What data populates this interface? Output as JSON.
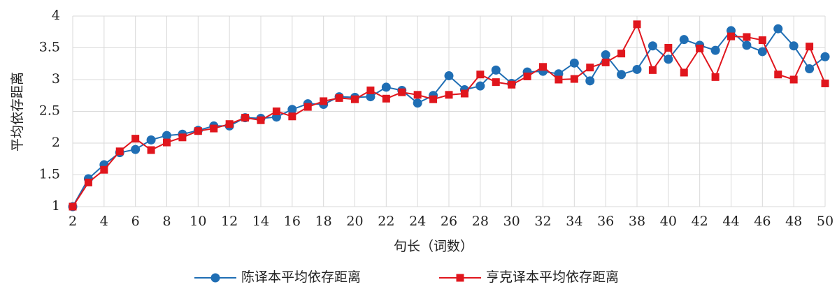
{
  "chart_data": {
    "type": "line",
    "x_label": "句长（词数）",
    "y_label": "平均依存距离",
    "x": [
      2,
      3,
      4,
      5,
      6,
      7,
      8,
      9,
      10,
      11,
      12,
      13,
      14,
      15,
      16,
      17,
      18,
      19,
      20,
      21,
      22,
      23,
      24,
      25,
      26,
      27,
      28,
      29,
      30,
      31,
      32,
      33,
      34,
      35,
      36,
      37,
      38,
      39,
      40,
      41,
      42,
      43,
      44,
      45,
      46,
      47,
      48,
      49,
      50
    ],
    "series": [
      {
        "name": "陈译本平均依存距离",
        "color": "#1f6eb4",
        "marker": "circle",
        "values": [
          1.0,
          1.44,
          1.66,
          1.85,
          1.9,
          2.05,
          2.12,
          2.14,
          2.2,
          2.27,
          2.27,
          2.4,
          2.39,
          2.41,
          2.53,
          2.62,
          2.61,
          2.73,
          2.72,
          2.73,
          2.88,
          2.83,
          2.63,
          2.75,
          3.06,
          2.84,
          2.9,
          3.15,
          2.94,
          3.12,
          3.13,
          3.09,
          3.26,
          2.98,
          3.39,
          3.08,
          3.16,
          3.53,
          3.32,
          3.63,
          3.54,
          3.46,
          3.77,
          3.54,
          3.44,
          3.8,
          3.53,
          3.17,
          3.36
        ]
      },
      {
        "name": "亨克译本平均依存距离",
        "color": "#e0161d",
        "marker": "square",
        "values": [
          1.0,
          1.38,
          1.58,
          1.87,
          2.07,
          1.89,
          2.01,
          2.09,
          2.19,
          2.23,
          2.3,
          2.4,
          2.36,
          2.5,
          2.42,
          2.57,
          2.66,
          2.71,
          2.69,
          2.83,
          2.7,
          2.8,
          2.76,
          2.69,
          2.76,
          2.78,
          3.08,
          2.96,
          2.92,
          3.05,
          3.2,
          3.0,
          3.01,
          3.19,
          3.27,
          3.41,
          3.87,
          3.15,
          3.5,
          3.11,
          3.49,
          3.04,
          3.68,
          3.67,
          3.62,
          3.08,
          3.0,
          3.52,
          2.94
        ]
      }
    ],
    "xlim": [
      2,
      50
    ],
    "xticks": [
      2,
      4,
      6,
      8,
      10,
      12,
      14,
      16,
      18,
      20,
      22,
      24,
      26,
      28,
      30,
      32,
      34,
      36,
      38,
      40,
      42,
      44,
      46,
      48,
      50
    ],
    "ylim": [
      1,
      4
    ],
    "yticks": [
      1,
      1.5,
      2,
      2.5,
      3,
      3.5,
      4
    ],
    "grid": true,
    "legend": "bottom"
  }
}
